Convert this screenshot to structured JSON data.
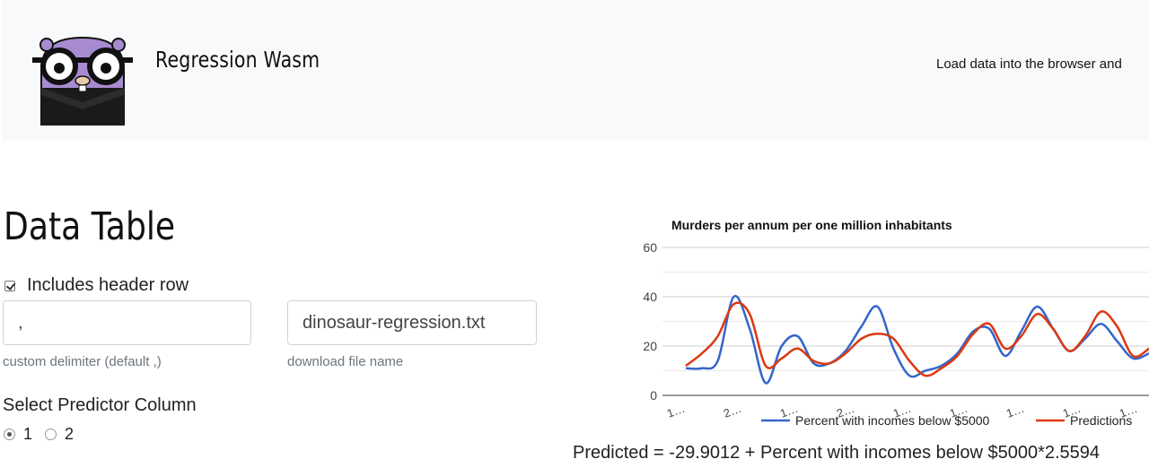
{
  "header": {
    "brand": "Regression Wasm",
    "tagline": "Load data into the browser and"
  },
  "data_table": {
    "title": "Data Table",
    "header_row_label": "Includes header row",
    "header_row_checked": true,
    "delimiter_value": ",",
    "delimiter_help": "custom delimiter (default ,)",
    "filename_value": "dinosaur-regression.txt",
    "filename_help": "download file name",
    "predictor_title": "Select Predictor Column",
    "predictor_options": [
      "1",
      "2"
    ],
    "predictor_selected": "1"
  },
  "colors": {
    "header_bg": "#f8f9fa",
    "series_actual": "#3366cc",
    "series_predictions": "#dc3912",
    "gopher_body": "#a78bd0"
  },
  "chart_data": {
    "type": "line",
    "title": "Murders per annum per one million inhabitants",
    "ylim": [
      0,
      60
    ],
    "yticks": [
      0,
      20,
      40,
      60
    ],
    "x_tick_labels": [
      "1…",
      "2…",
      "1…",
      "2…",
      "1…",
      "1…",
      "1…",
      "1…",
      "1…"
    ],
    "legend_position": "bottom",
    "series": [
      {
        "name": "Percent with incomes below $5000",
        "color": "#3366cc",
        "values": [
          11,
          11,
          14,
          40,
          27,
          5,
          20,
          24,
          13,
          13,
          18,
          28,
          36,
          19,
          8,
          10,
          12,
          17,
          26,
          27,
          16,
          26,
          36,
          27,
          18,
          23,
          29,
          22,
          15,
          17
        ]
      },
      {
        "name": "Predictions",
        "color": "#dc3912",
        "values": [
          12,
          17,
          24,
          37,
          33,
          12,
          15,
          19,
          14,
          13,
          17,
          23,
          25,
          23,
          14,
          8,
          11,
          16,
          25,
          29,
          19,
          24,
          33,
          27,
          18,
          24,
          34,
          28,
          16,
          19
        ]
      }
    ]
  },
  "formula": "Predicted = -29.9012 + Percent with incomes below $5000*2.5594"
}
